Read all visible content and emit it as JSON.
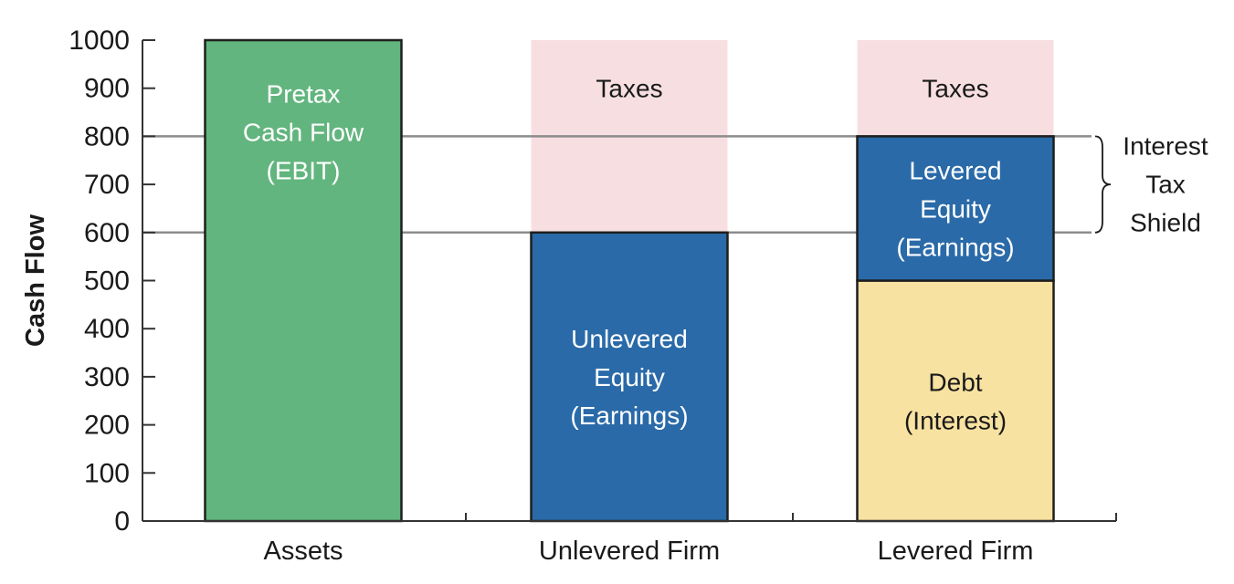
{
  "chart_data": {
    "type": "bar",
    "stacked": true,
    "title": "",
    "xlabel": "",
    "ylabel": "Cash Flow",
    "ylim": [
      0,
      1000
    ],
    "yticks": [
      0,
      100,
      200,
      300,
      400,
      500,
      600,
      700,
      800,
      900,
      1000
    ],
    "categories": [
      "Assets",
      "Unlevered Firm",
      "Levered Firm"
    ],
    "bars": [
      {
        "category": "Assets",
        "segments": [
          {
            "name": "Pretax Cash Flow (EBIT)",
            "label_lines": [
              "Pretax",
              "Cash Flow",
              "(EBIT)"
            ],
            "from": 0,
            "to": 1000,
            "color": "#62b57e",
            "text_color": "#ffffff",
            "outlined": true
          }
        ]
      },
      {
        "category": "Unlevered Firm",
        "segments": [
          {
            "name": "Unlevered Equity (Earnings)",
            "label_lines": [
              "Unlevered",
              "Equity",
              "(Earnings)"
            ],
            "from": 0,
            "to": 600,
            "color": "#2a6aa8",
            "text_color": "#ffffff",
            "outlined": true
          },
          {
            "name": "Taxes",
            "label_lines": [
              "Taxes"
            ],
            "from": 600,
            "to": 1000,
            "color": "#f7dfe1",
            "text_color": "#1a1a1a",
            "outlined": false
          }
        ]
      },
      {
        "category": "Levered Firm",
        "segments": [
          {
            "name": "Debt (Interest)",
            "label_lines": [
              "Debt",
              "(Interest)"
            ],
            "from": 0,
            "to": 500,
            "color": "#f8e2a1",
            "text_color": "#1a1a1a",
            "outlined": true
          },
          {
            "name": "Levered Equity (Earnings)",
            "label_lines": [
              "Levered",
              "Equity",
              "(Earnings)"
            ],
            "from": 500,
            "to": 800,
            "color": "#2a6aa8",
            "text_color": "#ffffff",
            "outlined": true
          },
          {
            "name": "Taxes",
            "label_lines": [
              "Taxes"
            ],
            "from": 800,
            "to": 1000,
            "color": "#f7dfe1",
            "text_color": "#1a1a1a",
            "outlined": false
          }
        ]
      }
    ],
    "reference_lines": [
      600,
      800
    ],
    "annotations": [
      {
        "label_lines": [
          "Interest",
          "Tax",
          "Shield"
        ],
        "from": 600,
        "to": 800
      }
    ],
    "colors": {
      "axis": "#333333",
      "gridline": "#8c8c8c",
      "outline": "#1e1e1e"
    }
  }
}
